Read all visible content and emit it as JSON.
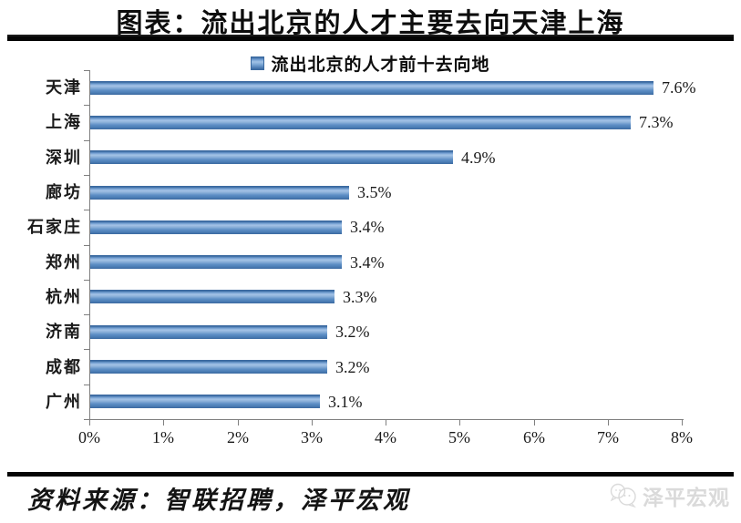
{
  "page": {
    "title": "图表：流出北京的人才主要去向天津上海",
    "source_note": "资料来源：智联招聘，泽平宏观",
    "watermark_text": "泽平宏观"
  },
  "chart_data": {
    "type": "bar",
    "orientation": "horizontal",
    "legend": [
      "流出北京的人才前十去向地"
    ],
    "legend_position": "top-center",
    "categories": [
      "天津",
      "上海",
      "深圳",
      "廊坊",
      "石家庄",
      "郑州",
      "杭州",
      "济南",
      "成都",
      "广州"
    ],
    "values": [
      7.6,
      7.3,
      4.9,
      3.5,
      3.4,
      3.4,
      3.3,
      3.2,
      3.2,
      3.1
    ],
    "value_labels": [
      "7.6%",
      "7.3%",
      "4.9%",
      "3.5%",
      "3.4%",
      "3.4%",
      "3.3%",
      "3.2%",
      "3.2%",
      "3.1%"
    ],
    "x_ticks": [
      "0%",
      "1%",
      "2%",
      "3%",
      "4%",
      "5%",
      "6%",
      "7%",
      "8%"
    ],
    "xlim": [
      0,
      8
    ],
    "xlabel": "",
    "ylabel": "",
    "grid": false,
    "bar_color": "#5d8ec5",
    "bar_edge_color": "#3a69a0",
    "axis_color": "#7f7f7f"
  }
}
